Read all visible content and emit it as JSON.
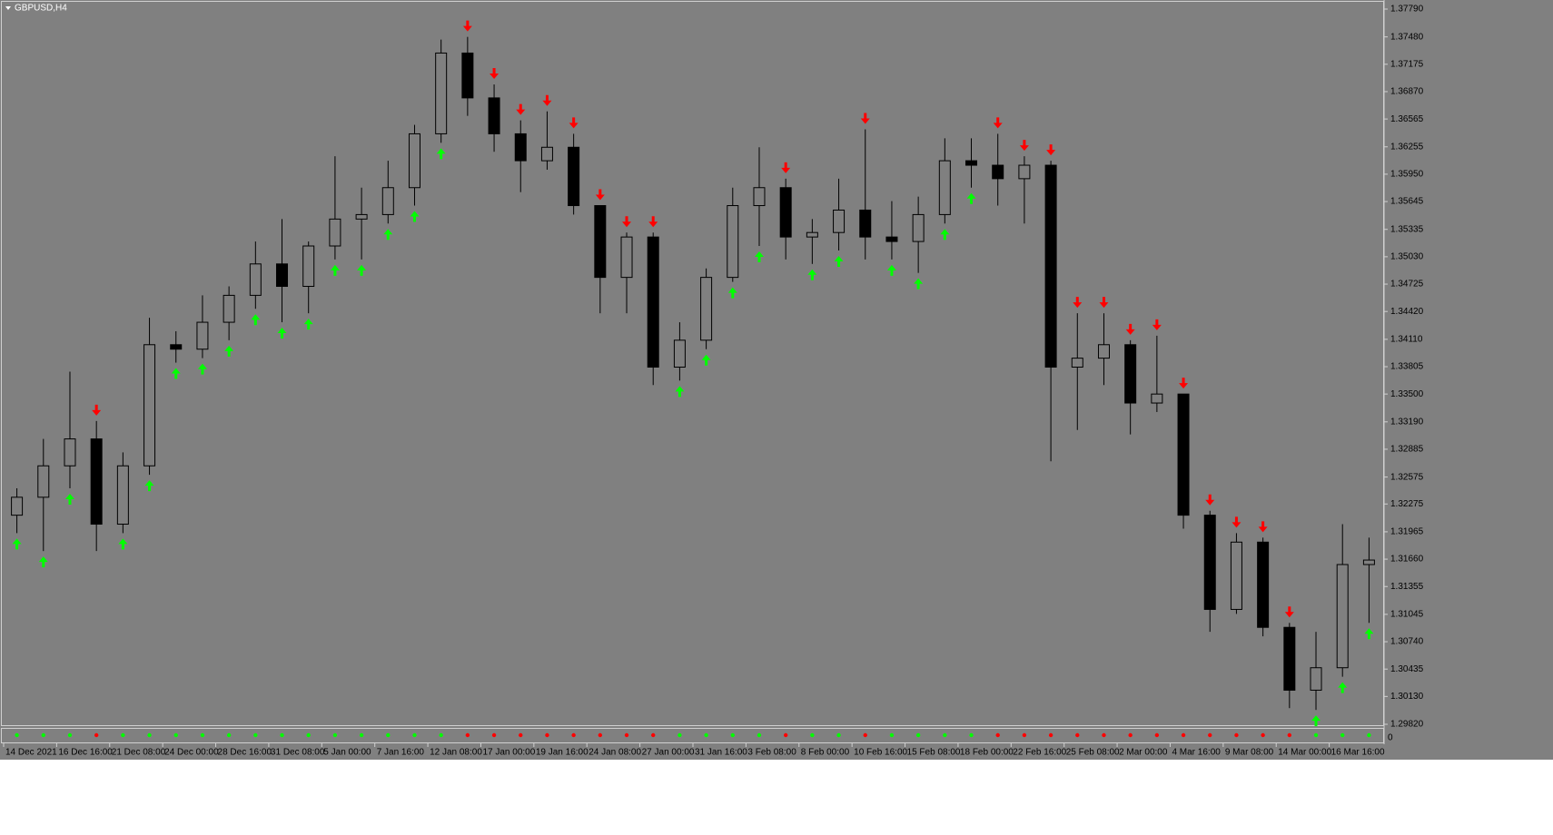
{
  "chart_data": {
    "type": "candlestick",
    "title": "GBPUSD,H4",
    "categories": [
      "14 Dec 2021",
      null,
      "16 Dec 16:00",
      null,
      "21 Dec 08:00",
      null,
      "24 Dec 00:00",
      null,
      "28 Dec 16:00",
      null,
      "31 Dec 08:00",
      null,
      "5 Jan 00:00",
      null,
      "7 Jan 16:00",
      null,
      "12 Jan 08:00",
      null,
      "17 Jan 00:00",
      null,
      "19 Jan 16:00",
      null,
      "24 Jan 08:00",
      null,
      "27 Jan 00:00",
      null,
      "31 Jan 16:00",
      null,
      "3 Feb 08:00",
      null,
      "8 Feb 00:00",
      null,
      "10 Feb 16:00",
      null,
      "15 Feb 08:00",
      null,
      "18 Feb 00:00",
      null,
      "22 Feb 16:00",
      null,
      "25 Feb 08:00",
      null,
      "2 Mar 00:00",
      null,
      "4 Mar 16:00",
      null,
      "9 Mar 08:00",
      null,
      "14 Mar 00:00",
      null,
      "16 Mar 16:00",
      null
    ],
    "open": [
      1.3215,
      1.3235,
      1.327,
      1.33,
      1.3205,
      1.327,
      1.3405,
      1.34,
      1.343,
      1.346,
      1.3495,
      1.347,
      1.3515,
      1.3545,
      1.355,
      1.358,
      1.364,
      1.373,
      1.368,
      1.364,
      1.361,
      1.3625,
      1.356,
      1.348,
      1.3525,
      1.338,
      1.341,
      1.348,
      1.356,
      1.358,
      1.3525,
      1.353,
      1.3555,
      1.3525,
      1.352,
      1.355,
      1.361,
      1.3605,
      1.359,
      1.3605,
      1.338,
      1.339,
      1.3405,
      1.334,
      1.335,
      1.3215,
      1.311,
      1.3185,
      1.309,
      1.302,
      1.3045,
      1.316
    ],
    "high": [
      1.3245,
      1.33,
      1.3375,
      1.332,
      1.3285,
      1.3435,
      1.342,
      1.346,
      1.347,
      1.352,
      1.3545,
      1.352,
      1.3615,
      1.358,
      1.361,
      1.365,
      1.3745,
      1.3748,
      1.3695,
      1.3655,
      1.3665,
      1.364,
      1.356,
      1.353,
      1.353,
      1.343,
      1.349,
      1.358,
      1.3625,
      1.359,
      1.3545,
      1.359,
      1.3645,
      1.3565,
      1.357,
      1.3635,
      1.3635,
      1.364,
      1.3615,
      1.361,
      1.344,
      1.344,
      1.341,
      1.3415,
      1.335,
      1.322,
      1.3195,
      1.319,
      1.3095,
      1.3085,
      1.3205,
      1.319
    ],
    "low": [
      1.3195,
      1.3175,
      1.3245,
      1.3175,
      1.3195,
      1.326,
      1.3385,
      1.339,
      1.341,
      1.3445,
      1.343,
      1.344,
      1.35,
      1.35,
      1.354,
      1.356,
      1.363,
      1.366,
      1.362,
      1.3575,
      1.36,
      1.355,
      1.344,
      1.344,
      1.336,
      1.3365,
      1.34,
      1.3475,
      1.3515,
      1.35,
      1.3495,
      1.351,
      1.35,
      1.35,
      1.3485,
      1.354,
      1.358,
      1.356,
      1.354,
      1.3275,
      1.331,
      1.336,
      1.3305,
      1.333,
      1.32,
      1.3085,
      1.3105,
      1.308,
      1.3,
      1.2998,
      1.3035,
      1.3095
    ],
    "close": [
      1.3235,
      1.327,
      1.33,
      1.3205,
      1.327,
      1.3405,
      1.34,
      1.343,
      1.346,
      1.3495,
      1.347,
      1.3515,
      1.3545,
      1.355,
      1.358,
      1.364,
      1.373,
      1.368,
      1.364,
      1.361,
      1.3625,
      1.356,
      1.348,
      1.3525,
      1.338,
      1.341,
      1.348,
      1.356,
      1.358,
      1.3525,
      1.353,
      1.3555,
      1.3525,
      1.352,
      1.355,
      1.361,
      1.3605,
      1.359,
      1.3605,
      1.338,
      1.339,
      1.3405,
      1.334,
      1.335,
      1.3215,
      1.311,
      1.3185,
      1.309,
      1.302,
      1.3045,
      1.316,
      1.3165
    ],
    "signals": [
      "up",
      "up",
      "up",
      "down",
      "up",
      "up",
      "up",
      "up",
      "up",
      "up",
      "up",
      "up",
      "up",
      "up",
      "up",
      "up",
      "up",
      "down",
      "down",
      "down",
      "down",
      "down",
      "down",
      "down",
      "down",
      "up",
      "up",
      "up",
      "up",
      "down",
      "up",
      "up",
      "down",
      "up",
      "up",
      "up",
      "up",
      "down",
      "down",
      "down",
      "down",
      "down",
      "down",
      "down",
      "down",
      "down",
      "down",
      "down",
      "down",
      "up",
      "up",
      "up"
    ],
    "up_color": "#00ff00",
    "down_color": "#ff0000",
    "ylim": [
      1.2982,
      1.3779
    ],
    "yticks": [
      {
        "value": 1.2982,
        "label": "1.29820"
      },
      {
        "value": 1.3013,
        "label": "1.30130"
      },
      {
        "value": 1.30435,
        "label": "1.30435"
      },
      {
        "value": 1.3074,
        "label": "1.30740"
      },
      {
        "value": 1.31045,
        "label": "1.31045"
      },
      {
        "value": 1.31355,
        "label": "1.31355"
      },
      {
        "value": 1.3166,
        "label": "1.31660"
      },
      {
        "value": 1.31965,
        "label": "1.31965"
      },
      {
        "value": 1.32275,
        "label": "1.32275"
      },
      {
        "value": 1.32575,
        "label": "1.32575"
      },
      {
        "value": 1.32885,
        "label": "1.32885"
      },
      {
        "value": 1.3319,
        "label": "1.33190"
      },
      {
        "value": 1.335,
        "label": "1.33500"
      },
      {
        "value": 1.33805,
        "label": "1.33805"
      },
      {
        "value": 1.3411,
        "label": "1.34110"
      },
      {
        "value": 1.3442,
        "label": "1.34420"
      },
      {
        "value": 1.34725,
        "label": "1.34725"
      },
      {
        "value": 1.3503,
        "label": "1.35030"
      },
      {
        "value": 1.35335,
        "label": "1.35335"
      },
      {
        "value": 1.35645,
        "label": "1.35645"
      },
      {
        "value": 1.3595,
        "label": "1.35950"
      },
      {
        "value": 1.36255,
        "label": "1.36255"
      },
      {
        "value": 1.36565,
        "label": "1.36565"
      },
      {
        "value": 1.3687,
        "label": "1.36870"
      },
      {
        "value": 1.37175,
        "label": "1.37175"
      },
      {
        "value": 1.3748,
        "label": "1.37480"
      },
      {
        "value": 1.3779,
        "label": "1.37790"
      }
    ],
    "indicator_ticks": [
      0
    ]
  }
}
